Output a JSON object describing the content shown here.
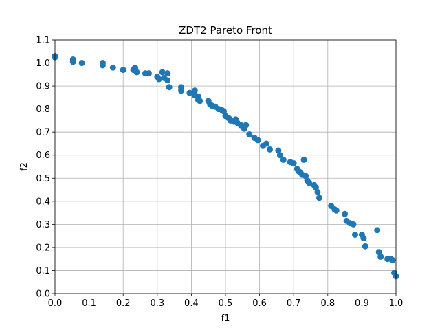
{
  "chart_data": {
    "type": "scatter",
    "title": "ZDT2 Pareto Front",
    "xlabel": "f1",
    "ylabel": "f2",
    "xlim": [
      0.0,
      1.0
    ],
    "ylim": [
      0.0,
      1.1
    ],
    "grid": true,
    "x_ticks": [
      "0.0",
      "0.1",
      "0.2",
      "0.3",
      "0.4",
      "0.5",
      "0.6",
      "0.7",
      "0.8",
      "0.9",
      "1.0"
    ],
    "y_ticks": [
      "0.0",
      "0.1",
      "0.2",
      "0.3",
      "0.4",
      "0.5",
      "0.6",
      "0.7",
      "0.8",
      "0.9",
      "1.0",
      "1.1"
    ],
    "marker_color": "#1f77b4",
    "series": [
      {
        "x": [
          0.0,
          0.0,
          0.053,
          0.053,
          0.079,
          0.14,
          0.14,
          0.17,
          0.2,
          0.23,
          0.235,
          0.24,
          0.265,
          0.275,
          0.3,
          0.305,
          0.315,
          0.32,
          0.33,
          0.33,
          0.335,
          0.37,
          0.37,
          0.395,
          0.41,
          0.41,
          0.42,
          0.42,
          0.425,
          0.45,
          0.455,
          0.46,
          0.47,
          0.48,
          0.49,
          0.495,
          0.5,
          0.51,
          0.515,
          0.525,
          0.53,
          0.535,
          0.545,
          0.555,
          0.56,
          0.57,
          0.585,
          0.595,
          0.61,
          0.62,
          0.63,
          0.655,
          0.66,
          0.67,
          0.69,
          0.7,
          0.71,
          0.715,
          0.72,
          0.725,
          0.73,
          0.735,
          0.74,
          0.745,
          0.76,
          0.765,
          0.77,
          0.775,
          0.81,
          0.82,
          0.825,
          0.85,
          0.855,
          0.865,
          0.875,
          0.88,
          0.9,
          0.905,
          0.91,
          0.945,
          0.95,
          0.955,
          0.975,
          0.985,
          0.99,
          0.995,
          1.0
        ],
        "y": [
          1.03,
          1.025,
          1.015,
          1.005,
          1.0,
          1.0,
          0.99,
          0.98,
          0.97,
          0.97,
          0.98,
          0.96,
          0.955,
          0.955,
          0.94,
          0.93,
          0.96,
          0.935,
          0.925,
          0.955,
          0.895,
          0.895,
          0.88,
          0.87,
          0.88,
          0.86,
          0.855,
          0.84,
          0.835,
          0.835,
          0.82,
          0.815,
          0.81,
          0.8,
          0.795,
          0.79,
          0.77,
          0.76,
          0.75,
          0.745,
          0.755,
          0.74,
          0.73,
          0.715,
          0.73,
          0.69,
          0.675,
          0.665,
          0.64,
          0.65,
          0.625,
          0.62,
          0.6,
          0.58,
          0.57,
          0.565,
          0.54,
          0.53,
          0.525,
          0.515,
          0.58,
          0.51,
          0.49,
          0.48,
          0.47,
          0.46,
          0.44,
          0.415,
          0.38,
          0.365,
          0.36,
          0.345,
          0.315,
          0.305,
          0.3,
          0.255,
          0.255,
          0.24,
          0.205,
          0.275,
          0.18,
          0.16,
          0.15,
          0.15,
          0.145,
          0.09,
          0.075
        ]
      }
    ]
  }
}
